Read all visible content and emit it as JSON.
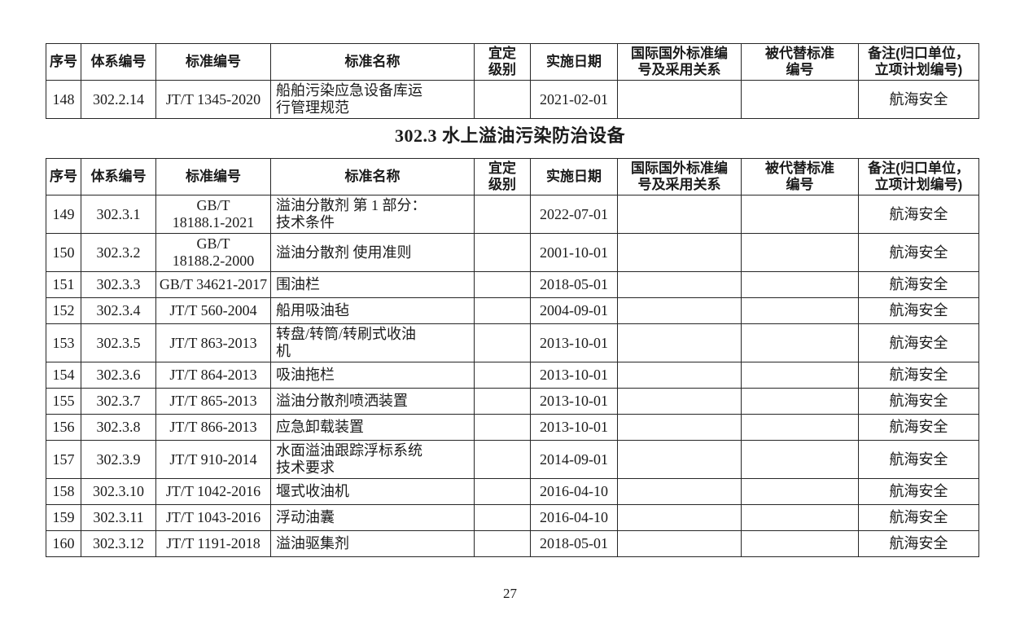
{
  "page": {
    "number": "27"
  },
  "section_title": "302.3 水上溢油污染防治设备",
  "columns": [
    {
      "key": "seq",
      "label": "序号"
    },
    {
      "key": "system_no",
      "label": "体系编号"
    },
    {
      "key": "std_no",
      "label": "标准编号"
    },
    {
      "key": "std_name",
      "label": "标准名称"
    },
    {
      "key": "level",
      "label": "宜定\n级别"
    },
    {
      "key": "impl_date",
      "label": "实施日期"
    },
    {
      "key": "intl",
      "label": "国际国外标准编\n号及采用关系"
    },
    {
      "key": "replaced",
      "label": "被代替标准\n编号"
    },
    {
      "key": "remark",
      "label": "备注(归口单位，\n立项计划编号)"
    }
  ],
  "table1": {
    "rows": [
      {
        "seq": "148",
        "system_no": "302.2.14",
        "std_no": "JT/T 1345-2020",
        "std_name": "船舶污染应急设备库运\n行管理规范",
        "level": "",
        "impl_date": "2021-02-01",
        "intl": "",
        "replaced": "",
        "remark": "航海安全"
      }
    ]
  },
  "table2": {
    "rows": [
      {
        "seq": "149",
        "system_no": "302.3.1",
        "std_no": "GB/T\n18188.1-2021",
        "std_name": "溢油分散剂 第 1 部分：\n技术条件",
        "level": "",
        "impl_date": "2022-07-01",
        "intl": "",
        "replaced": "",
        "remark": "航海安全"
      },
      {
        "seq": "150",
        "system_no": "302.3.2",
        "std_no": "GB/T\n18188.2-2000",
        "std_name": "溢油分散剂 使用准则",
        "level": "",
        "impl_date": "2001-10-01",
        "intl": "",
        "replaced": "",
        "remark": "航海安全"
      },
      {
        "seq": "151",
        "system_no": "302.3.3",
        "std_no": "GB/T 34621-2017",
        "std_name": "围油栏",
        "level": "",
        "impl_date": "2018-05-01",
        "intl": "",
        "replaced": "",
        "remark": "航海安全"
      },
      {
        "seq": "152",
        "system_no": "302.3.4",
        "std_no": "JT/T 560-2004",
        "std_name": "船用吸油毡",
        "level": "",
        "impl_date": "2004-09-01",
        "intl": "",
        "replaced": "",
        "remark": "航海安全"
      },
      {
        "seq": "153",
        "system_no": "302.3.5",
        "std_no": "JT/T 863-2013",
        "std_name": "转盘/转筒/转刷式收油\n机",
        "level": "",
        "impl_date": "2013-10-01",
        "intl": "",
        "replaced": "",
        "remark": "航海安全"
      },
      {
        "seq": "154",
        "system_no": "302.3.6",
        "std_no": "JT/T 864-2013",
        "std_name": "吸油拖栏",
        "level": "",
        "impl_date": "2013-10-01",
        "intl": "",
        "replaced": "",
        "remark": "航海安全"
      },
      {
        "seq": "155",
        "system_no": "302.3.7",
        "std_no": "JT/T 865-2013",
        "std_name": "溢油分散剂喷洒装置",
        "level": "",
        "impl_date": "2013-10-01",
        "intl": "",
        "replaced": "",
        "remark": "航海安全"
      },
      {
        "seq": "156",
        "system_no": "302.3.8",
        "std_no": "JT/T 866-2013",
        "std_name": "应急卸载装置",
        "level": "",
        "impl_date": "2013-10-01",
        "intl": "",
        "replaced": "",
        "remark": "航海安全"
      },
      {
        "seq": "157",
        "system_no": "302.3.9",
        "std_no": "JT/T 910-2014",
        "std_name": "水面溢油跟踪浮标系统\n技术要求",
        "level": "",
        "impl_date": "2014-09-01",
        "intl": "",
        "replaced": "",
        "remark": "航海安全"
      },
      {
        "seq": "158",
        "system_no": "302.3.10",
        "std_no": "JT/T 1042-2016",
        "std_name": "堰式收油机",
        "level": "",
        "impl_date": "2016-04-10",
        "intl": "",
        "replaced": "",
        "remark": "航海安全"
      },
      {
        "seq": "159",
        "system_no": "302.3.11",
        "std_no": "JT/T 1043-2016",
        "std_name": "浮动油囊",
        "level": "",
        "impl_date": "2016-04-10",
        "intl": "",
        "replaced": "",
        "remark": "航海安全"
      },
      {
        "seq": "160",
        "system_no": "302.3.12",
        "std_no": "JT/T 1191-2018",
        "std_name": "溢油驱集剂",
        "level": "",
        "impl_date": "2018-05-01",
        "intl": "",
        "replaced": "",
        "remark": "航海安全"
      }
    ]
  }
}
